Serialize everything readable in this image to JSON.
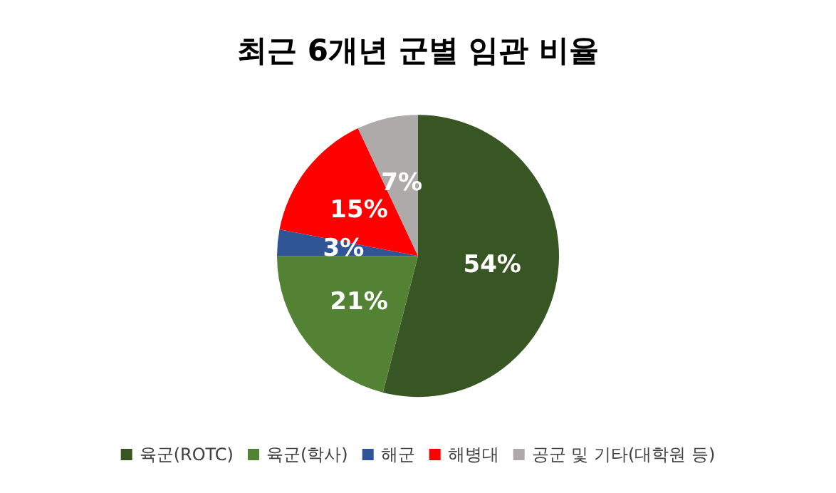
{
  "chart_data": {
    "type": "pie",
    "title": "최근 6개년 군별 임관 비율",
    "categories": [
      "육군(ROTC)",
      "육군(학사)",
      "해군",
      "해병대",
      "공군 및 기타(대학원 등)"
    ],
    "values": [
      54,
      21,
      3,
      15,
      7
    ],
    "colors": [
      "#375623",
      "#548235",
      "#2f5597",
      "#ff0000",
      "#aeaaaa"
    ],
    "value_labels": [
      "54%",
      "21%",
      "3%",
      "15%",
      "7%"
    ],
    "legend": "bottom"
  }
}
